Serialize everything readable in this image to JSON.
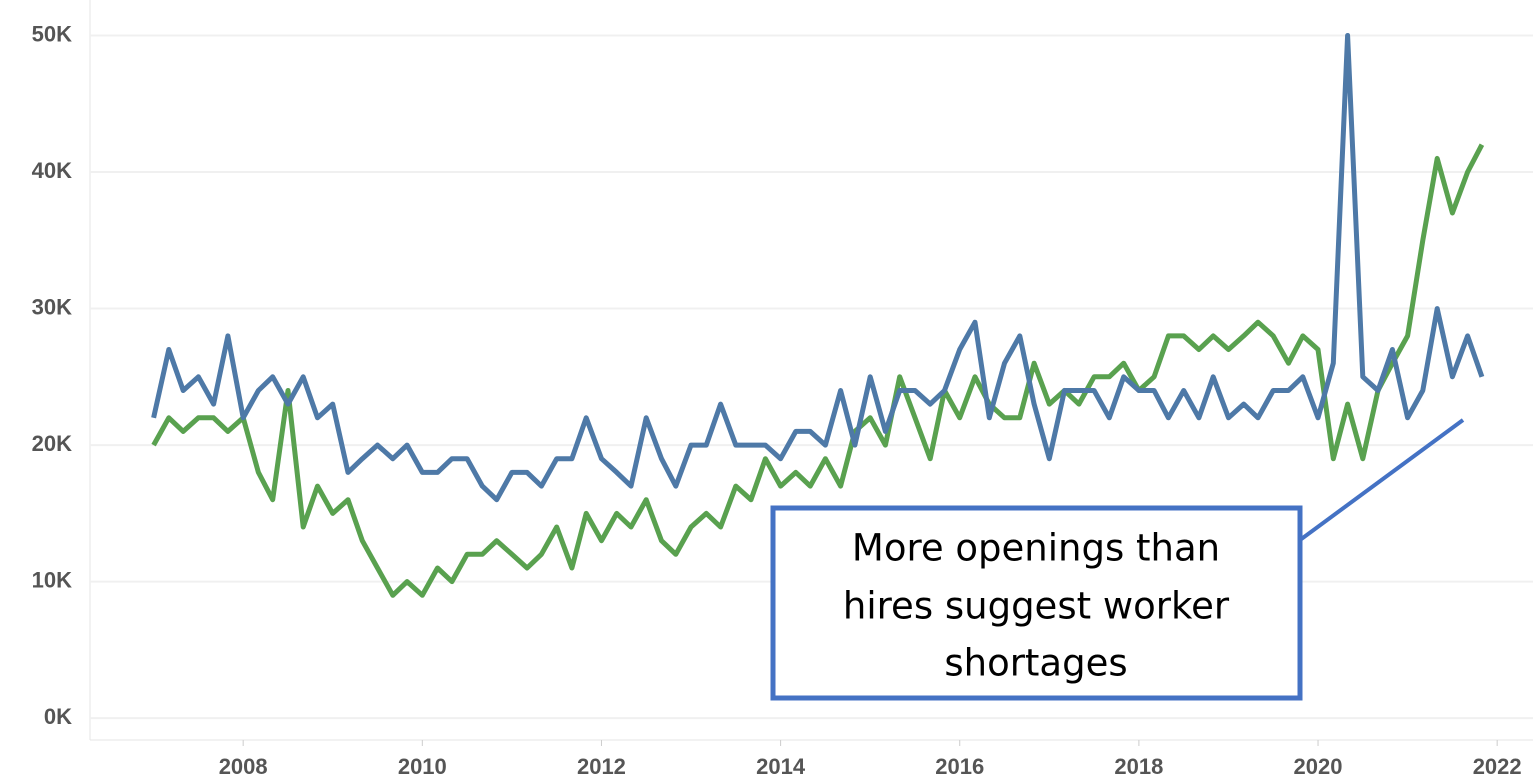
{
  "chart_data": {
    "type": "line",
    "x": [
      2007,
      2007.17,
      2007.33,
      2007.5,
      2007.67,
      2007.83,
      2008,
      2008.17,
      2008.33,
      2008.5,
      2008.67,
      2008.83,
      2009,
      2009.17,
      2009.33,
      2009.5,
      2009.67,
      2009.83,
      2010,
      2010.17,
      2010.33,
      2010.5,
      2010.67,
      2010.83,
      2011,
      2011.17,
      2011.33,
      2011.5,
      2011.67,
      2011.83,
      2012,
      2012.17,
      2012.33,
      2012.5,
      2012.67,
      2012.83,
      2013,
      2013.17,
      2013.33,
      2013.5,
      2013.67,
      2013.83,
      2014,
      2014.17,
      2014.33,
      2014.5,
      2014.67,
      2014.83,
      2015,
      2015.17,
      2015.33,
      2015.5,
      2015.67,
      2015.83,
      2016,
      2016.17,
      2016.33,
      2016.5,
      2016.67,
      2016.83,
      2017,
      2017.17,
      2017.33,
      2017.5,
      2017.67,
      2017.83,
      2018,
      2018.17,
      2018.33,
      2018.5,
      2018.67,
      2018.83,
      2019,
      2019.17,
      2019.33,
      2019.5,
      2019.67,
      2019.83,
      2020,
      2020.17,
      2020.33,
      2020.5,
      2020.67,
      2020.83,
      2021,
      2021.17,
      2021.33,
      2021.5,
      2021.67,
      2021.83
    ],
    "series": [
      {
        "color": "#59a14f",
        "values": [
          20000,
          22000,
          21000,
          22000,
          22000,
          21000,
          22000,
          18000,
          16000,
          24000,
          14000,
          17000,
          15000,
          16000,
          13000,
          11000,
          9000,
          10000,
          9000,
          11000,
          10000,
          12000,
          12000,
          13000,
          12000,
          11000,
          12000,
          14000,
          11000,
          15000,
          13000,
          15000,
          14000,
          16000,
          13000,
          12000,
          14000,
          15000,
          14000,
          17000,
          16000,
          19000,
          17000,
          18000,
          17000,
          19000,
          17000,
          21000,
          22000,
          20000,
          25000,
          22000,
          19000,
          24000,
          22000,
          25000,
          23000,
          22000,
          22000,
          26000,
          23000,
          24000,
          23000,
          25000,
          25000,
          26000,
          24000,
          25000,
          28000,
          28000,
          27000,
          28000,
          27000,
          28000,
          29000,
          28000,
          26000,
          28000,
          27000,
          19000,
          23000,
          19000,
          24000,
          26000,
          28000,
          35000,
          41000,
          37000,
          40000,
          42000
        ]
      },
      {
        "color": "#4e79a7",
        "values": [
          22000,
          27000,
          24000,
          25000,
          23000,
          28000,
          22000,
          24000,
          25000,
          23000,
          25000,
          22000,
          23000,
          18000,
          19000,
          20000,
          19000,
          20000,
          18000,
          18000,
          19000,
          19000,
          17000,
          16000,
          18000,
          18000,
          17000,
          19000,
          19000,
          22000,
          19000,
          18000,
          17000,
          22000,
          19000,
          17000,
          20000,
          20000,
          23000,
          20000,
          20000,
          20000,
          19000,
          21000,
          21000,
          20000,
          24000,
          20000,
          25000,
          21000,
          24000,
          24000,
          23000,
          24000,
          27000,
          29000,
          22000,
          26000,
          28000,
          23000,
          19000,
          24000,
          24000,
          24000,
          22000,
          25000,
          24000,
          24000,
          22000,
          24000,
          22000,
          25000,
          22000,
          23000,
          22000,
          24000,
          24000,
          25000,
          22000,
          26000,
          50000,
          25000,
          24000,
          27000,
          22000,
          24000,
          30000,
          25000,
          28000,
          25000
        ]
      }
    ],
    "xlim": [
      2006.29,
      2022.4
    ],
    "xticks": [
      2008,
      2010,
      2012,
      2014,
      2016,
      2018,
      2020,
      2022
    ],
    "ylim": [
      -1600,
      52600
    ],
    "yticks": [
      {
        "value": 0,
        "label": "0K"
      },
      {
        "value": 10000,
        "label": "10K"
      },
      {
        "value": 20000,
        "label": "20K"
      },
      {
        "value": 30000,
        "label": "30K"
      },
      {
        "value": 40000,
        "label": "40K"
      },
      {
        "value": 50000,
        "label": "50K"
      }
    ],
    "grid": true,
    "annotation": [
      "More openings than",
      "hires suggest worker",
      "shortages"
    ]
  }
}
